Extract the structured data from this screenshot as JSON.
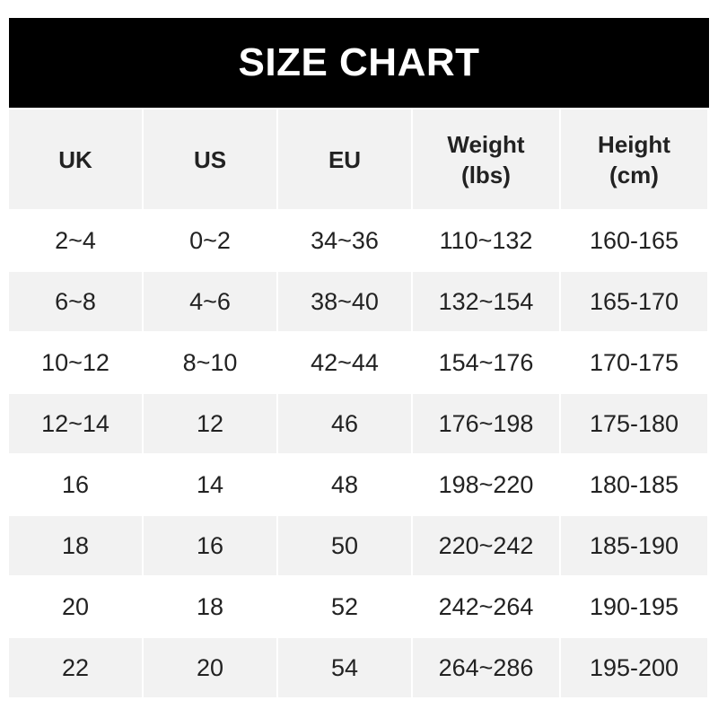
{
  "title": "SIZE CHART",
  "headers": [
    {
      "line1": "UK",
      "line2": ""
    },
    {
      "line1": "US",
      "line2": ""
    },
    {
      "line1": "EU",
      "line2": ""
    },
    {
      "line1": "Weight",
      "line2": "(lbs)"
    },
    {
      "line1": "Height",
      "line2": "(cm)"
    }
  ],
  "rows": [
    [
      "2~4",
      "0~2",
      "34~36",
      "110~132",
      "160-165"
    ],
    [
      "6~8",
      "4~6",
      "38~40",
      "132~154",
      "165-170"
    ],
    [
      "10~12",
      "8~10",
      "42~44",
      "154~176",
      "170-175"
    ],
    [
      "12~14",
      "12",
      "46",
      "176~198",
      "175-180"
    ],
    [
      "16",
      "14",
      "48",
      "198~220",
      "180-185"
    ],
    [
      "18",
      "16",
      "50",
      "220~242",
      "185-190"
    ],
    [
      "20",
      "18",
      "52",
      "242~264",
      "190-195"
    ],
    [
      "22",
      "20",
      "54",
      "264~286",
      "195-200"
    ]
  ]
}
